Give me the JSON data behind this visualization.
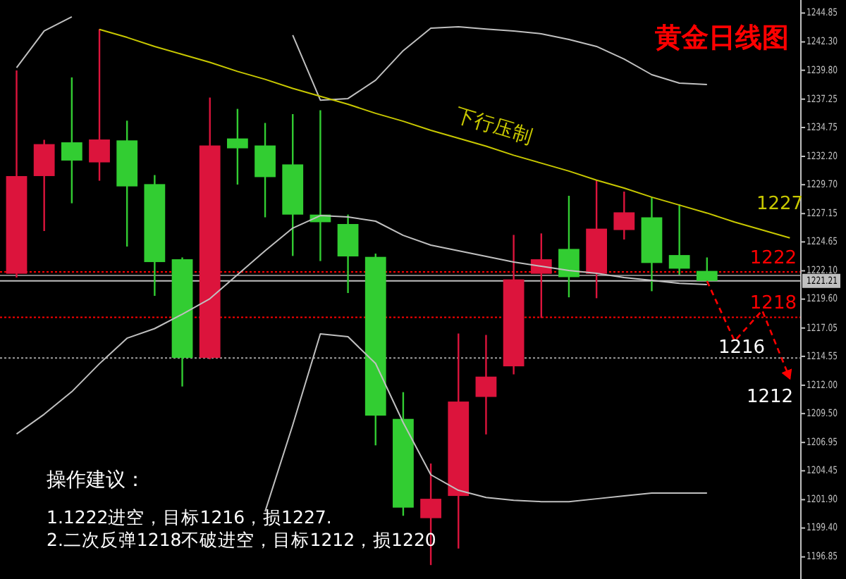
{
  "chart_data": {
    "type": "candlestick",
    "title": "黄金日线图",
    "categories": [
      null,
      null,
      null,
      null,
      null,
      null,
      null,
      null,
      null,
      null,
      null,
      null,
      null,
      null,
      null,
      null,
      null,
      null,
      null,
      null,
      null,
      null,
      null,
      null,
      null,
      null,
      null,
      null,
      null
    ],
    "ohlc": [
      [
        1221.84,
        1239.79,
        1221.5,
        1230.46
      ],
      [
        1230.46,
        1233.66,
        1225.61,
        1233.28
      ],
      [
        1233.44,
        1239.17,
        1228.06,
        1231.83
      ],
      [
        1231.67,
        1243.43,
        1230.05,
        1233.69
      ],
      [
        1233.61,
        1235.35,
        1224.24,
        1229.55
      ],
      [
        1229.75,
        1230.55,
        1219.89,
        1222.87
      ],
      [
        1223.12,
        1223.28,
        1211.89,
        1214.41
      ],
      [
        1214.41,
        1237.39,
        1214.3,
        1233.16
      ],
      [
        1233.78,
        1236.39,
        1229.71,
        1232.91
      ],
      [
        1233.16,
        1235.15,
        1226.82,
        1230.37
      ],
      [
        1231.49,
        1235.93,
        1223.41,
        1227.06
      ],
      [
        1227.06,
        1236.27,
        1222.96,
        1226.39
      ],
      [
        1226.23,
        1227.06,
        1220.14,
        1223.37
      ],
      [
        1223.33,
        1223.62,
        1206.7,
        1209.32
      ],
      [
        1209.03,
        1211.39,
        1200.48,
        1201.2
      ],
      [
        1200.27,
        1205.09,
        1196.13,
        1201.98
      ],
      [
        1202.23,
        1216.57,
        1197.59,
        1210.56
      ],
      [
        1210.97,
        1216.44,
        1207.66,
        1212.76
      ],
      [
        1213.67,
        1225.27,
        1212.96,
        1221.34
      ],
      [
        1221.84,
        1225.4,
        1217.94,
        1223.12
      ],
      [
        1224.03,
        1228.72,
        1219.76,
        1221.54
      ],
      [
        1221.84,
        1230.12,
        1219.68,
        1225.82
      ],
      [
        1225.7,
        1229.09,
        1224.86,
        1227.26
      ],
      [
        1226.82,
        1228.6,
        1220.3,
        1222.79
      ],
      [
        1223.49,
        1227.97,
        1221.75,
        1222.29
      ],
      [
        1222.09,
        1223.28,
        1221.1,
        1221.21
      ],
      null,
      null,
      null
    ],
    "colors": [
      "#dc143c",
      "#dc143c",
      "#32cd32",
      "#dc143c",
      "#32cd32",
      "#32cd32",
      "#32cd32",
      "#dc143c",
      "#32cd32",
      "#32cd32",
      "#32cd32",
      "#32cd32",
      "#32cd32",
      "#32cd32",
      "#32cd32",
      "#dc143c",
      "#dc143c",
      "#dc143c",
      "#dc143c",
      "#dc143c",
      "#32cd32",
      "#dc143c",
      "#dc143c",
      "#32cd32",
      "#32cd32",
      "#32cd32",
      null,
      null,
      null
    ],
    "series": [
      {
        "type": "line",
        "color": "#c0c0c0",
        "values": [
          1240.03,
          1243.27,
          1244.51,
          null,
          null,
          null,
          null,
          null,
          null,
          null,
          1242.9,
          1237.16,
          1237.3,
          1238.92,
          1241.53,
          1243.52,
          1243.64,
          1243.43,
          1243.27,
          1243.02,
          1242.52,
          1241.9,
          1240.78,
          1239.41,
          1238.67,
          1238.54,
          null,
          null,
          null
        ]
      },
      {
        "type": "line",
        "color": "#c0c0c0",
        "values": [
          1207.7,
          1209.44,
          1211.43,
          1213.9,
          1216.15,
          1217.0,
          1218.27,
          1219.64,
          1221.76,
          1223.87,
          1225.87,
          1226.97,
          1226.85,
          1226.48,
          1225.23,
          1224.37,
          1223.87,
          1223.37,
          1222.87,
          1222.5,
          1222.13,
          1221.88,
          1221.5,
          1221.26,
          1221.0,
          1220.88,
          null,
          null,
          null
        ]
      },
      {
        "type": "line",
        "color": "#c0c0c0",
        "values": [
          null,
          null,
          null,
          null,
          null,
          null,
          null,
          null,
          null,
          1200.86,
          1208.48,
          1216.53,
          1216.28,
          1213.92,
          1208.7,
          1204.1,
          1202.73,
          1202.1,
          1201.85,
          1201.73,
          1201.73,
          1201.98,
          1202.23,
          1202.48,
          1202.48,
          1202.48,
          null,
          null,
          null
        ]
      },
      {
        "type": "line",
        "color": "#c8c800",
        "values": [
          null,
          null,
          null,
          1243.4,
          1242.7,
          1241.9,
          1241.2,
          1240.5,
          1239.7,
          1239.0,
          1238.2,
          1237.5,
          1236.8,
          1236.0,
          1235.3,
          1234.5,
          1233.8,
          1233.1,
          1232.3,
          1231.6,
          1230.9,
          1230.1,
          1229.4,
          1228.6,
          1227.9,
          1227.2,
          1226.4,
          1225.7,
          1225.0
        ]
      },
      {
        "type": "line",
        "color": "#ff0000",
        "line_style": "dashed",
        "values": [
          null,
          null,
          null,
          null,
          null,
          null,
          null,
          null,
          null,
          null,
          null,
          null,
          null,
          null,
          null,
          null,
          null,
          null,
          null,
          null,
          null,
          null,
          null,
          null,
          null,
          1221.2,
          1215.9,
          1218.6,
          1212.6
        ]
      }
    ],
    "ref_lines": [
      {
        "axis": "y",
        "value": 1222,
        "label": "1222",
        "color": "#ff0000",
        "line_style": "dotted"
      },
      {
        "axis": "y",
        "value": 1218,
        "label": "1218",
        "color": "#ff0000",
        "line_style": "dotted"
      },
      {
        "axis": "y",
        "value": 1214.41,
        "color": "#a0a0a0",
        "line_style": "dotted"
      },
      {
        "axis": "y",
        "value": 1221.7,
        "color": "#808080",
        "line_style": "solid"
      },
      {
        "axis": "y",
        "value": 1221.21,
        "label": "1221.21",
        "color": "#c0c0c0",
        "line_style": "solid"
      }
    ],
    "annotations": [
      "下行压制",
      "1227",
      "1216",
      "1212",
      "操作建议：",
      "1.1222进空，目标1216，损1227.",
      "2.二次反弹1218不破进空，目标1212，损1220"
    ],
    "ylim": [
      1194.9,
      1246.0
    ],
    "yticks": [
      {
        "value": 1244.85,
        "label": "1244.85"
      },
      {
        "value": 1242.3,
        "label": "1242.30"
      },
      {
        "value": 1239.8,
        "label": "1239.80"
      },
      {
        "value": 1237.25,
        "label": "1237.25"
      },
      {
        "value": 1234.75,
        "label": "1234.75"
      },
      {
        "value": 1232.2,
        "label": "1232.20"
      },
      {
        "value": 1229.7,
        "label": "1229.70"
      },
      {
        "value": 1227.15,
        "label": "1227.15"
      },
      {
        "value": 1224.65,
        "label": "1224.65"
      },
      {
        "value": 1222.1,
        "label": "1222.10"
      },
      {
        "value": 1219.6,
        "label": "1219.60"
      },
      {
        "value": 1217.05,
        "label": "1217.05"
      },
      {
        "value": 1214.55,
        "label": "1214.55"
      },
      {
        "value": 1212,
        "label": "1212.00"
      },
      {
        "value": 1209.5,
        "label": "1209.50"
      },
      {
        "value": 1206.95,
        "label": "1206.95"
      },
      {
        "value": 1204.45,
        "label": "1204.45"
      },
      {
        "value": 1201.9,
        "label": "1201.90"
      },
      {
        "value": 1199.4,
        "label": "1199.40"
      },
      {
        "value": 1196.85,
        "label": "1196.85"
      }
    ],
    "tick_labels": "y"
  }
}
